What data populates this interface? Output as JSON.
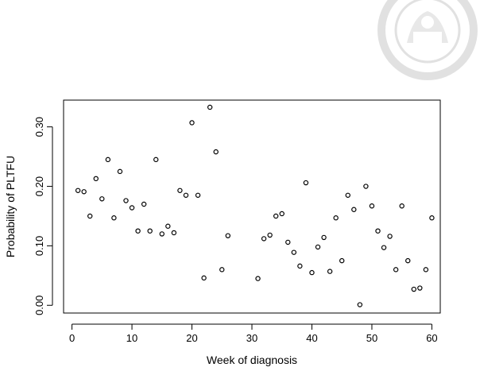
{
  "chart_data": {
    "type": "scatter",
    "title": "",
    "xlabel": "Week of diagnosis",
    "ylabel": "Probability of PLTFU",
    "xlim": [
      -1.4,
      61.4
    ],
    "ylim": [
      -0.013,
      0.345
    ],
    "xticks": [
      0,
      10,
      20,
      30,
      40,
      50,
      60
    ],
    "yticks": [
      0.0,
      0.1,
      0.2,
      0.3
    ],
    "ytick_labels": [
      "0.00",
      "0.10",
      "0.20",
      "0.30"
    ],
    "grid": false,
    "marker": "open-circle",
    "x": [
      1,
      2,
      3,
      4,
      5,
      6,
      7,
      8,
      9,
      10,
      11,
      12,
      13,
      14,
      15,
      16,
      17,
      18,
      19,
      20,
      21,
      22,
      23,
      24,
      25,
      26,
      31,
      32,
      33,
      34,
      35,
      36,
      37,
      38,
      39,
      40,
      41,
      42,
      43,
      44,
      45,
      46,
      47,
      48,
      49,
      50,
      51,
      52,
      53,
      54,
      55,
      56,
      57,
      58,
      59,
      60
    ],
    "y": [
      0.193,
      0.191,
      0.15,
      0.213,
      0.179,
      0.245,
      0.147,
      0.225,
      0.176,
      0.164,
      0.125,
      0.17,
      0.125,
      0.245,
      0.12,
      0.133,
      0.122,
      0.193,
      0.185,
      0.307,
      0.185,
      0.046,
      0.333,
      0.258,
      0.06,
      0.117,
      0.045,
      0.112,
      0.118,
      0.15,
      0.154,
      0.106,
      0.089,
      0.066,
      0.206,
      0.055,
      0.098,
      0.114,
      0.057,
      0.147,
      0.075,
      0.185,
      0.161,
      0.001,
      0.2,
      0.167,
      0.125,
      0.097,
      0.116,
      0.06,
      0.167,
      0.075,
      0.027,
      0.029,
      0.06,
      0.147
    ]
  }
}
